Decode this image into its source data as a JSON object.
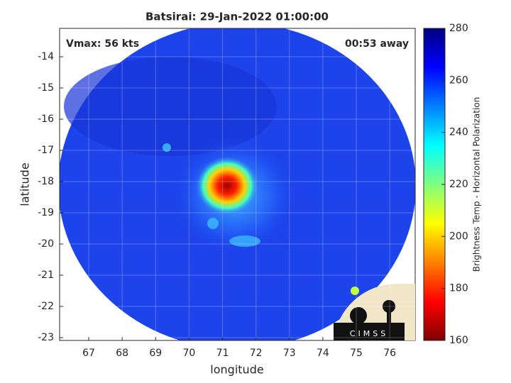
{
  "chart_data": {
    "type": "image",
    "title": "Batsirai: 29-Jan-2022 01:00:00",
    "annotations": [
      "Vmax: 56 kts",
      "00:53 away"
    ],
    "logo": "CIMSS",
    "xlabel": "longitude",
    "ylabel": "latitude",
    "xlim": [
      66.13,
      76.76
    ],
    "xticks": [
      67,
      68,
      69,
      70,
      71,
      72,
      73,
      74,
      75,
      76
    ],
    "ylim": [
      -23.09,
      -13.09
    ],
    "yticks": [
      -14,
      -15,
      -16,
      -17,
      -18,
      -19,
      -20,
      -21,
      -22,
      -23
    ],
    "grid": true,
    "colorbar": {
      "label": "Brightness Temp - Horizontal Polarization",
      "lim": [
        160,
        280
      ],
      "ticks": [
        160,
        180,
        200,
        220,
        240,
        260,
        280
      ],
      "colors": [
        "#800000",
        "#ff0000",
        "#ff8000",
        "#ffff00",
        "#80ff80",
        "#00ffff",
        "#0080ff",
        "#0000ff",
        "#000080"
      ]
    }
  }
}
